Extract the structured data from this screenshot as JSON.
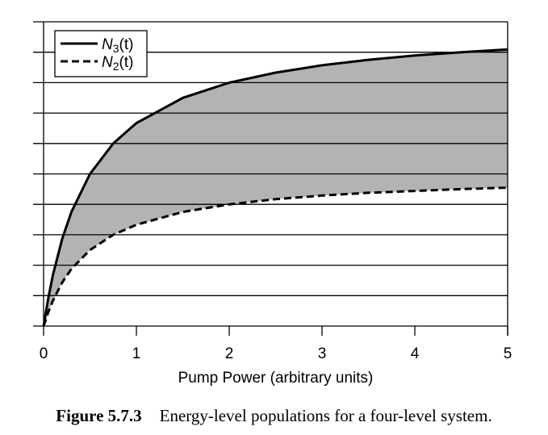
{
  "chart_data": {
    "type": "area",
    "title": "",
    "xlabel": "Pump Power (arbitrary units)",
    "ylabel": "",
    "xlim": [
      0,
      5
    ],
    "ylim": [
      0,
      10
    ],
    "xticks": [
      "0",
      "1",
      "2",
      "3",
      "4",
      "5"
    ],
    "grid": true,
    "legend": "top-left",
    "series": [
      {
        "name": "N3(t)",
        "label_main": "N",
        "label_sub": "3",
        "label_arg": "(t)",
        "style": "solid",
        "x": [
          0,
          0.05,
          0.1,
          0.2,
          0.3,
          0.5,
          0.75,
          1,
          1.5,
          2,
          2.5,
          3,
          3.5,
          4,
          4.5,
          5
        ],
        "values": [
          0,
          0.91,
          1.67,
          2.86,
          3.75,
          5.0,
          6.0,
          6.67,
          7.5,
          8.0,
          8.33,
          8.57,
          8.75,
          8.89,
          9.0,
          9.09
        ]
      },
      {
        "name": "N2(t)",
        "label_main": "N",
        "label_sub": "2",
        "label_arg": "(t)",
        "style": "dashed",
        "x": [
          0,
          0.05,
          0.1,
          0.2,
          0.3,
          0.5,
          0.75,
          1,
          1.5,
          2,
          2.5,
          3,
          3.5,
          4,
          4.5,
          5
        ],
        "values": [
          0,
          0.45,
          0.83,
          1.43,
          1.88,
          2.5,
          3.0,
          3.33,
          3.75,
          4.0,
          4.17,
          4.29,
          4.38,
          4.44,
          4.5,
          4.55
        ]
      }
    ],
    "fill_between_color": "#b3b3b3"
  },
  "caption": {
    "label": "Figure 5.7.3",
    "text": "Energy-level populations for a four-level system."
  }
}
